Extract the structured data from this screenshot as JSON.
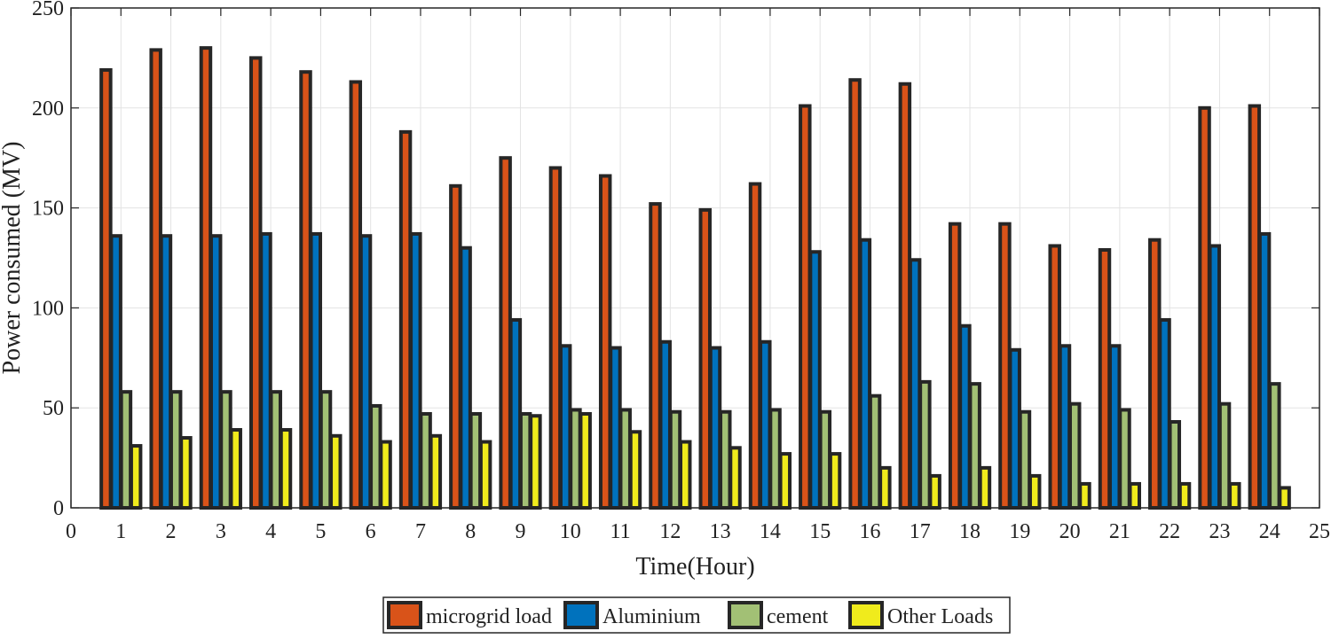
{
  "chart_data": {
    "type": "bar",
    "title": "",
    "xlabel": "Time(Hour)",
    "ylabel": "Power consumed (MV)",
    "xlim": [
      0,
      25
    ],
    "ylim": [
      0,
      250
    ],
    "xticks": [
      0,
      1,
      2,
      3,
      4,
      5,
      6,
      7,
      8,
      9,
      10,
      11,
      12,
      13,
      14,
      15,
      16,
      17,
      18,
      19,
      20,
      21,
      22,
      23,
      24,
      25
    ],
    "yticks": [
      0,
      50,
      100,
      150,
      200,
      250
    ],
    "grid": true,
    "legend_position": "bottom-center",
    "categories": [
      1,
      2,
      3,
      4,
      5,
      6,
      7,
      8,
      9,
      10,
      11,
      12,
      13,
      14,
      15,
      16,
      17,
      18,
      19,
      20,
      21,
      22,
      23,
      24
    ],
    "series": [
      {
        "name": "microgrid load",
        "color": "#d95319",
        "values": [
          219,
          229,
          230,
          225,
          218,
          213,
          188,
          161,
          175,
          170,
          166,
          152,
          149,
          162,
          201,
          214,
          212,
          142,
          142,
          131,
          129,
          134,
          200,
          201
        ]
      },
      {
        "name": "Aluminium",
        "color": "#0072bd",
        "values": [
          136,
          136,
          136,
          137,
          137,
          136,
          137,
          130,
          94,
          81,
          80,
          83,
          80,
          83,
          128,
          134,
          124,
          91,
          79,
          81,
          81,
          94,
          131,
          137
        ]
      },
      {
        "name": "cement",
        "color": "#a2c075",
        "values": [
          58,
          58,
          58,
          58,
          58,
          51,
          47,
          47,
          47,
          49,
          49,
          48,
          48,
          49,
          48,
          56,
          63,
          62,
          48,
          52,
          49,
          43,
          52,
          62
        ]
      },
      {
        "name": "Other Loads",
        "color": "#f0eb1c",
        "values": [
          31,
          35,
          39,
          39,
          36,
          33,
          36,
          33,
          46,
          47,
          38,
          33,
          30,
          27,
          27,
          20,
          16,
          20,
          16,
          12,
          12,
          12,
          12,
          10
        ]
      }
    ]
  }
}
